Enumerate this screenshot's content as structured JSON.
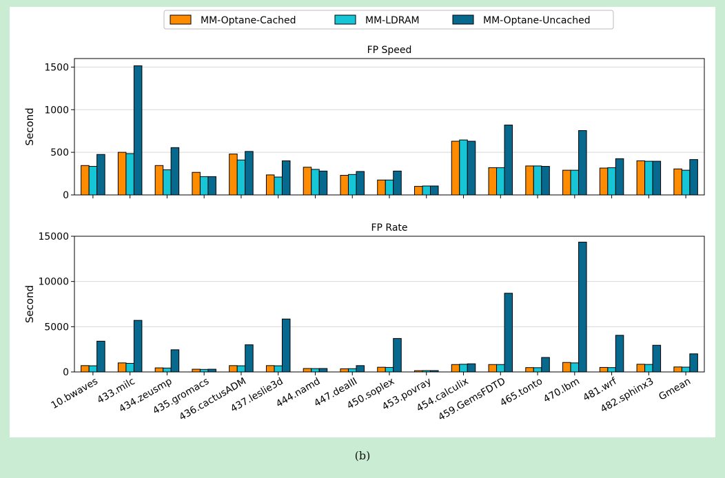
{
  "caption": "(b)",
  "colors": {
    "MM-Optane-Cached": "#ff8c00",
    "MM-LDRAM": "#16c6d6",
    "MM-Optane-Uncached": "#08698f"
  },
  "chart_data": [
    {
      "type": "bar",
      "title": "FP Speed",
      "xlabel": "",
      "ylabel": "Second",
      "ylim": [
        0,
        1600
      ],
      "yticks": [
        0,
        500,
        1000,
        1500
      ],
      "grid": "y",
      "legend": "top-center",
      "categories": [
        "10.bwaves",
        "433.milc",
        "434.zeusmp",
        "435.gromacs",
        "436.cactusADM",
        "437.leslie3d",
        "444.namd",
        "447.dealII",
        "450.soplex",
        "453.povray",
        "454.calculix",
        "459.GemsFDTD",
        "465.tonto",
        "470.lbm",
        "481.wrf",
        "482.sphinx3",
        "Gmean"
      ],
      "series": [
        {
          "name": "MM-Optane-Cached",
          "values": [
            345,
            500,
            345,
            265,
            480,
            235,
            325,
            230,
            175,
            100,
            630,
            320,
            340,
            290,
            315,
            400,
            305
          ]
        },
        {
          "name": "MM-LDRAM",
          "values": [
            335,
            485,
            295,
            215,
            410,
            210,
            300,
            240,
            175,
            105,
            645,
            320,
            340,
            290,
            320,
            395,
            290
          ]
        },
        {
          "name": "MM-Optane-Uncached",
          "values": [
            475,
            1515,
            555,
            215,
            510,
            400,
            280,
            275,
            280,
            105,
            630,
            820,
            335,
            755,
            425,
            395,
            415
          ]
        }
      ]
    },
    {
      "type": "bar",
      "title": "FP Rate",
      "xlabel": "",
      "ylabel": "Second",
      "ylim": [
        0,
        15000
      ],
      "yticks": [
        0,
        5000,
        10000,
        15000
      ],
      "grid": "y",
      "categories": [
        "10.bwaves",
        "433.milc",
        "434.zeusmp",
        "435.gromacs",
        "436.cactusADM",
        "437.leslie3d",
        "444.namd",
        "447.dealII",
        "450.soplex",
        "453.povray",
        "454.calculix",
        "459.GemsFDTD",
        "465.tonto",
        "470.lbm",
        "481.wrf",
        "482.sphinx3",
        "Gmean"
      ],
      "series": [
        {
          "name": "MM-Optane-Cached",
          "values": [
            700,
            1000,
            450,
            300,
            700,
            700,
            380,
            350,
            520,
            140,
            820,
            820,
            480,
            1050,
            500,
            850,
            550
          ]
        },
        {
          "name": "MM-LDRAM",
          "values": [
            680,
            950,
            430,
            280,
            680,
            680,
            370,
            360,
            500,
            150,
            850,
            820,
            470,
            1000,
            480,
            830,
            530
          ]
        },
        {
          "name": "MM-Optane-Uncached",
          "values": [
            3400,
            5700,
            2450,
            300,
            3000,
            5850,
            380,
            700,
            3700,
            150,
            900,
            8700,
            1600,
            14350,
            4050,
            2950,
            2000
          ]
        }
      ]
    }
  ]
}
